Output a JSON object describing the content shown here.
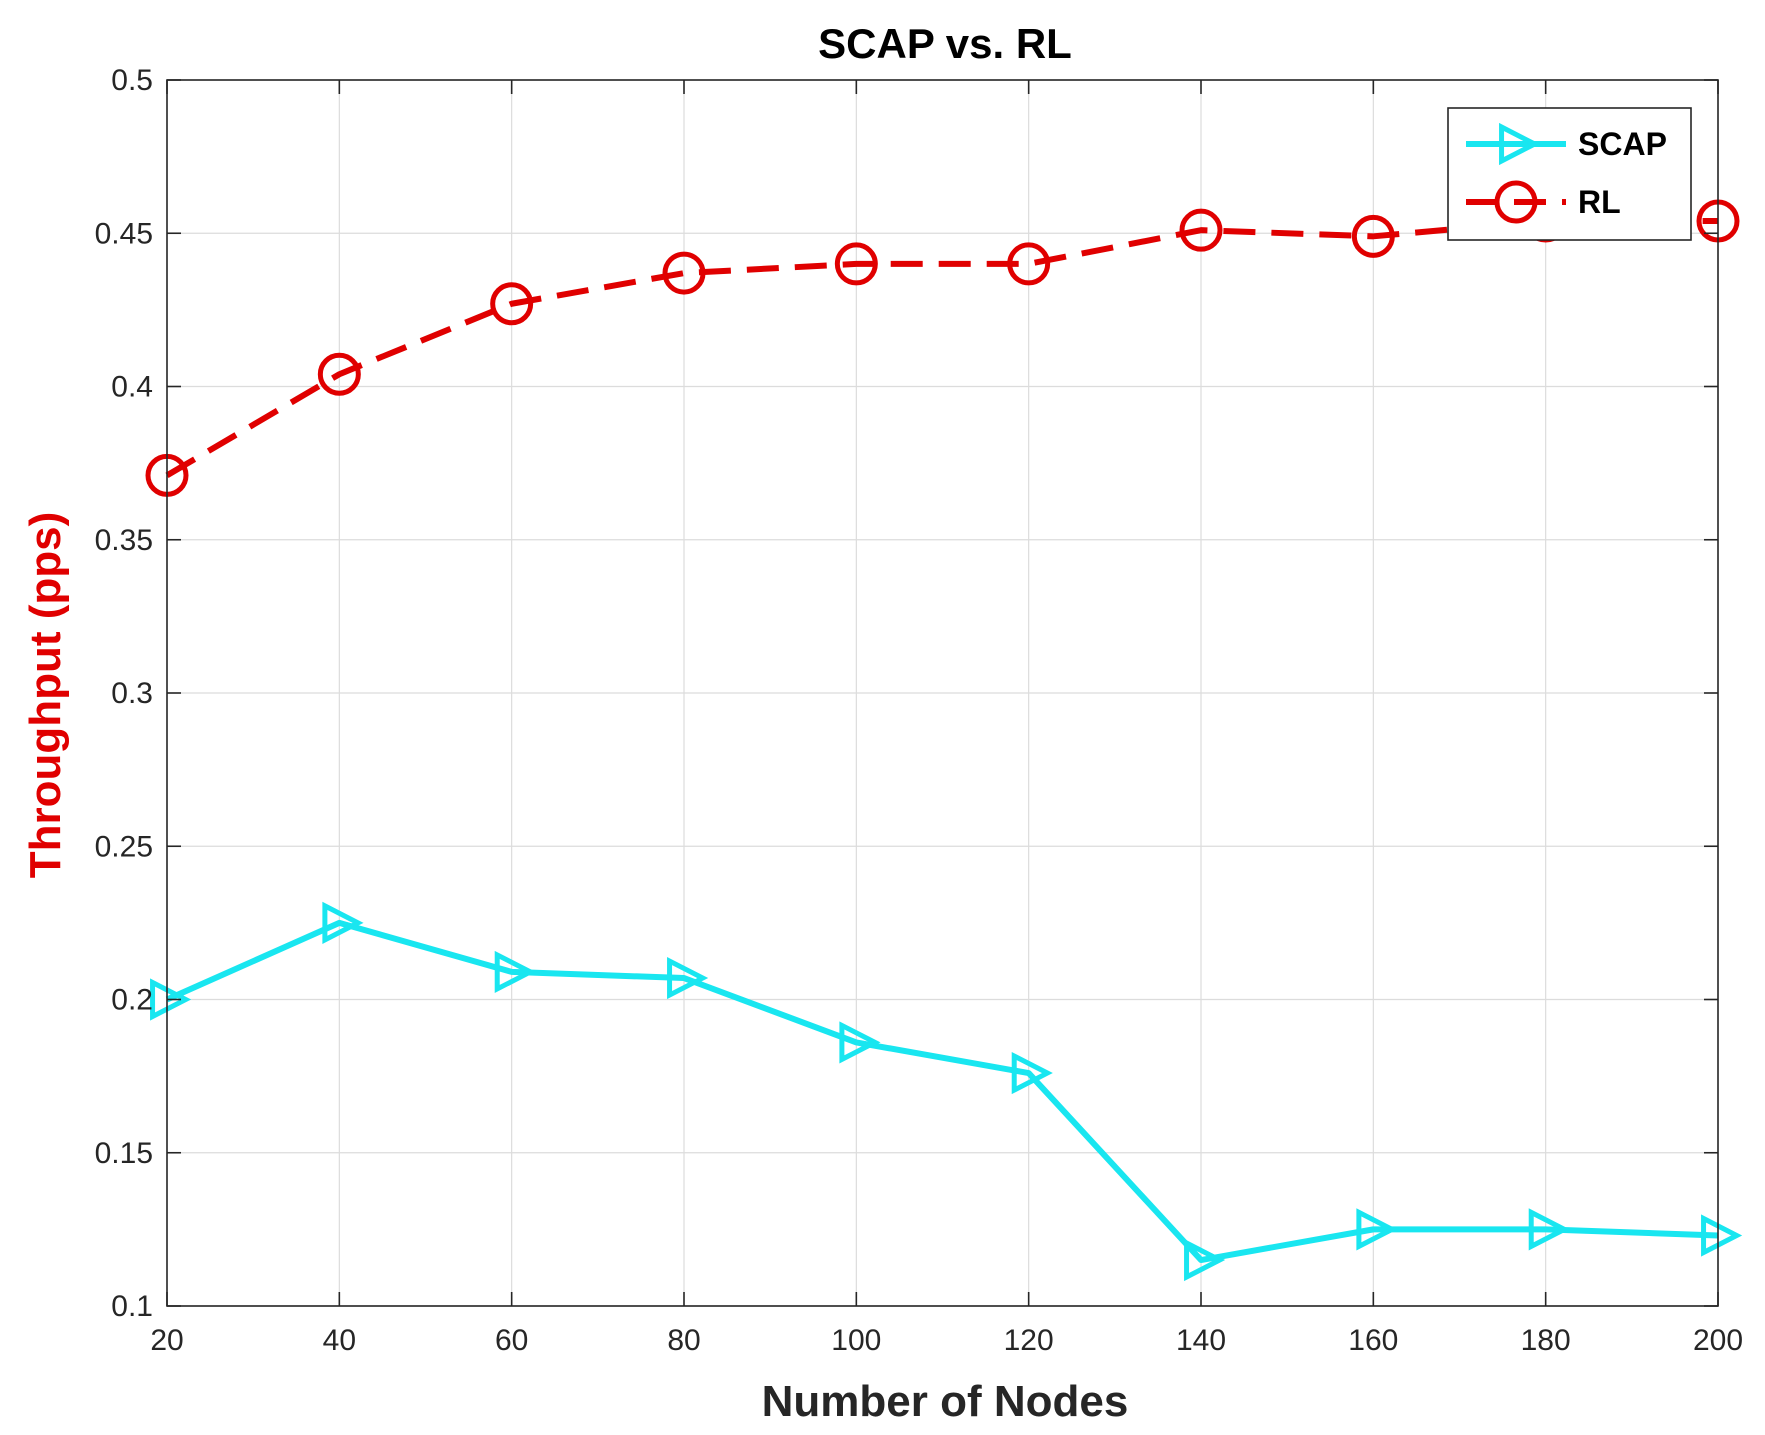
{
  "chart_data": {
    "type": "line",
    "title": "SCAP vs. RL",
    "xlabel": "Number of Nodes",
    "ylabel": "Throughput (pps)",
    "ylabel_color": "#e00000",
    "x": [
      20,
      40,
      60,
      80,
      100,
      120,
      140,
      160,
      180,
      200
    ],
    "x_tick_labels": [
      "20",
      "40",
      "60",
      "80",
      "100",
      "120",
      "140",
      "160",
      "180",
      "200"
    ],
    "y_tick_values": [
      0.1,
      0.15,
      0.2,
      0.25,
      0.3,
      0.35,
      0.4,
      0.45,
      0.5
    ],
    "y_tick_labels": [
      "0.1",
      "0.15",
      "0.2",
      "0.25",
      "0.3",
      "0.35",
      "0.4",
      "0.45",
      "0.5"
    ],
    "xlim": [
      20,
      200
    ],
    "ylim": [
      0.1,
      0.5
    ],
    "grid": true,
    "legend_position": "top-right",
    "series": [
      {
        "name": "SCAP",
        "color": "#19e6f0",
        "line_style": "solid",
        "marker": "triangle-right",
        "values": [
          0.2,
          0.225,
          0.209,
          0.207,
          0.186,
          0.176,
          0.115,
          0.125,
          0.125,
          0.123
        ]
      },
      {
        "name": "RL",
        "color": "#e00000",
        "line_style": "dashed",
        "marker": "circle",
        "values": [
          0.371,
          0.404,
          0.427,
          0.437,
          0.44,
          0.44,
          0.451,
          0.449,
          0.454,
          0.454
        ]
      }
    ]
  }
}
